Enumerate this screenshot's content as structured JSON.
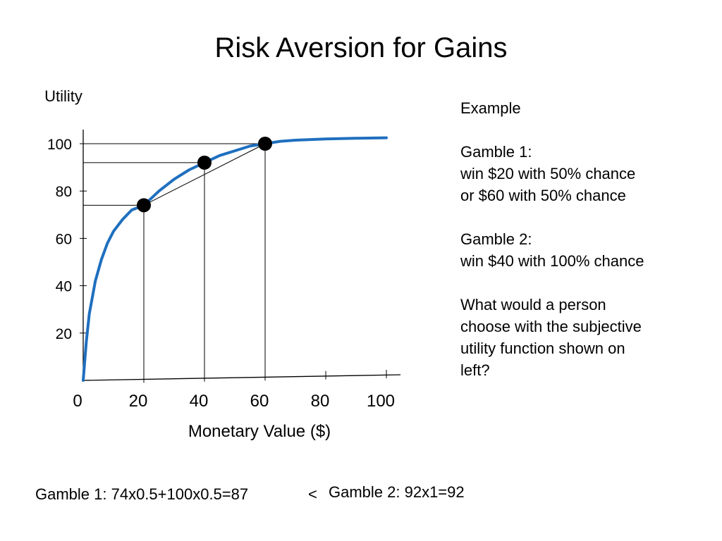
{
  "title": "Risk Aversion for Gains",
  "chart_data": {
    "type": "line",
    "title": "Risk Aversion for Gains",
    "xlabel": "Monetary Value ($)",
    "ylabel": "Utility",
    "xlim": [
      0,
      100
    ],
    "ylim": [
      0,
      100
    ],
    "x_ticks": [
      0,
      20,
      40,
      60,
      80,
      100
    ],
    "y_ticks": [
      20,
      40,
      60,
      80,
      100
    ],
    "series": [
      {
        "x": [
          0,
          1,
          2,
          4,
          6,
          8,
          10,
          13,
          16,
          20,
          25,
          30,
          35,
          40,
          45,
          50,
          55,
          60,
          65,
          70,
          80,
          90,
          100
        ],
        "y": [
          0,
          16,
          28,
          42,
          51,
          58,
          63,
          68,
          72,
          74,
          80,
          85,
          89,
          92,
          95,
          97,
          99,
          100,
          101,
          101.5,
          102,
          102.3,
          102.5
        ]
      }
    ],
    "points": [
      {
        "x": 20,
        "y": 74
      },
      {
        "x": 40,
        "y": 92
      },
      {
        "x": 60,
        "y": 100
      }
    ],
    "chord": {
      "from": {
        "x": 20,
        "y": 74
      },
      "to": {
        "x": 60,
        "y": 100
      }
    },
    "grid": false,
    "line_color": "#1f6fbf"
  },
  "example": {
    "heading": "Example",
    "gamble1_title": "Gamble 1:",
    "gamble1_line1": "win $20 with 50% chance",
    "gamble1_line2": "or $60 with 50% chance",
    "gamble2_title": "Gamble 2:",
    "gamble2_line1": "win $40 with 100% chance",
    "question_line1": "What would a person",
    "question_line2": "choose with the subjective",
    "question_line3": "utility function shown on",
    "question_line4": "left?"
  },
  "calc": {
    "gamble1": "Gamble 1:  74x0.5+100x0.5=87",
    "compare": "<",
    "gamble2": "Gamble 2:  92x1=92"
  }
}
